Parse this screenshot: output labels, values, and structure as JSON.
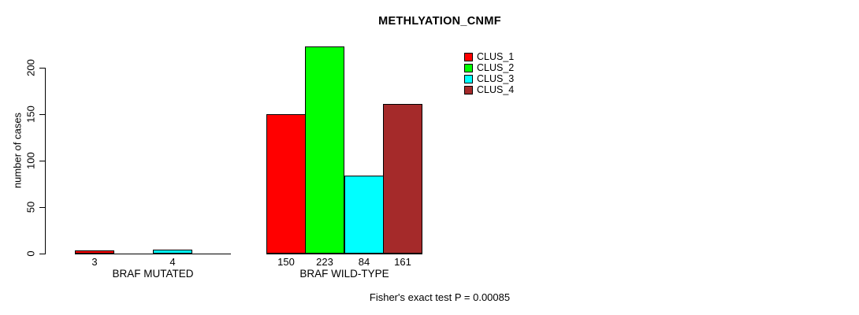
{
  "title": "METHLYATION_CNMF",
  "chart_data": {
    "type": "bar",
    "title": "METHLYATION_CNMF",
    "xlabel": "",
    "ylabel": "number of cases",
    "categories": [
      "BRAF MUTATED",
      "BRAF WILD-TYPE"
    ],
    "series": [
      {
        "name": "CLUS_1",
        "color": "#ff0000",
        "values": [
          3,
          150
        ]
      },
      {
        "name": "CLUS_2",
        "color": "#00ff00",
        "values": [
          0,
          223
        ]
      },
      {
        "name": "CLUS_3",
        "color": "#00ffff",
        "values": [
          4,
          84
        ]
      },
      {
        "name": "CLUS_4",
        "color": "#a52a2a",
        "values": [
          0,
          161
        ]
      }
    ],
    "visible_bar_labels": [
      "3",
      "4",
      "150",
      "223",
      "84",
      "161"
    ],
    "ylim": [
      0,
      200
    ],
    "yticks": [
      "0",
      "50",
      "100",
      "150",
      "200"
    ],
    "grid": false,
    "bar_border_color": "#000000",
    "legend_position": "top-right",
    "legend_entries": [
      "CLUS_1",
      "CLUS_2",
      "CLUS_3",
      "CLUS_4"
    ],
    "annotation": "Fisher's exact test P = 0.00085"
  }
}
